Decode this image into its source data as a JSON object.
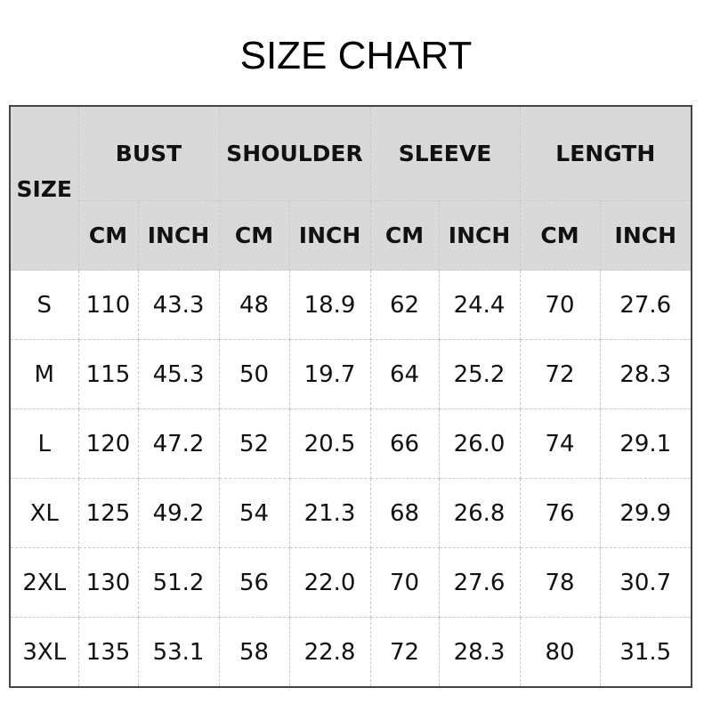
{
  "title": "SIZE CHART",
  "table": {
    "size_header": "SIZE",
    "groups": [
      "BUST",
      "SHOULDER",
      "SLEEVE",
      "LENGTH"
    ],
    "units": [
      "CM",
      "INCH",
      "CM",
      "INCH",
      "CM",
      "INCH",
      "CM",
      "INCH"
    ],
    "rows": [
      [
        "S",
        "110",
        "43.3",
        "48",
        "18.9",
        "62",
        "24.4",
        "70",
        "27.6"
      ],
      [
        "M",
        "115",
        "45.3",
        "50",
        "19.7",
        "64",
        "25.2",
        "72",
        "28.3"
      ],
      [
        "L",
        "120",
        "47.2",
        "52",
        "20.5",
        "66",
        "26.0",
        "74",
        "29.1"
      ],
      [
        "XL",
        "125",
        "49.2",
        "54",
        "21.3",
        "68",
        "26.8",
        "76",
        "29.9"
      ],
      [
        "2XL",
        "130",
        "51.2",
        "56",
        "22.0",
        "70",
        "27.6",
        "78",
        "30.7"
      ],
      [
        "3XL",
        "135",
        "53.1",
        "58",
        "22.8",
        "72",
        "28.3",
        "80",
        "31.5"
      ]
    ]
  },
  "colors": {
    "header_bg": "#d9d9d9",
    "border": "#444444"
  }
}
